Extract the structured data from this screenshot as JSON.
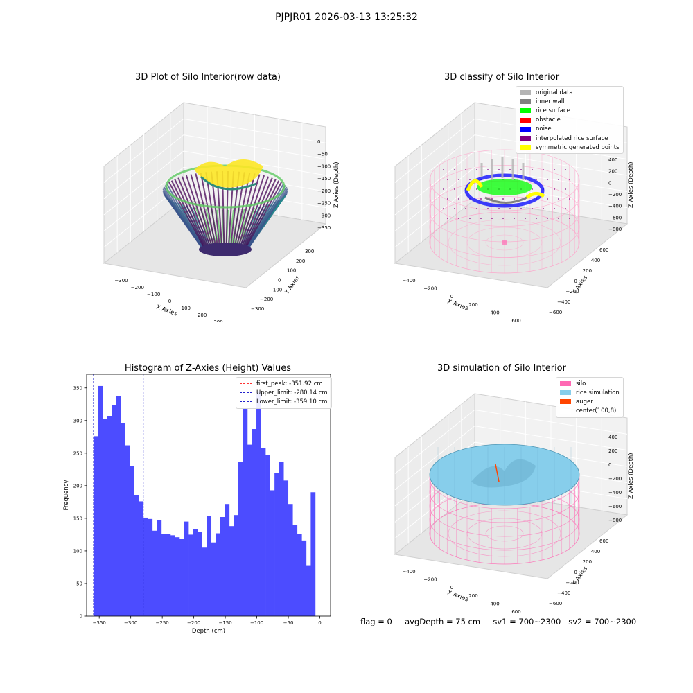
{
  "figure": {
    "suptitle": "PJPJR01 2026-03-13 13:25:32"
  },
  "status_line": {
    "text": "flag = 0     avgDepth = 75 cm     sv1 = 700~2300   sv2 = 700~2300"
  },
  "colors": {
    "histogram_bar": "#4c4cff",
    "first_peak": "#ff3333",
    "upper_limit": "#2222cc",
    "lower_limit": "#2222cc",
    "silo": "#ff69b4",
    "rice_simulation": "#87ceeb",
    "auger": "#ff4500",
    "original_data": "#b4b4b4",
    "inner_wall": "#808080",
    "rice_surface": "#00ff00",
    "obstacle": "#ff0000",
    "noise": "#0000ff",
    "interpolated_rice_surface": "#800080",
    "symmetric_generated_points": "#ffff00"
  },
  "panels": {
    "raw": {
      "title": "3D Plot of Silo Interior(row data)",
      "xlabel": "X Axies",
      "ylabel": "Y Axies",
      "zlabel": "Z Axies (Depth)",
      "xticks": [
        "−300",
        "−200",
        "−100",
        "0",
        "100",
        "200",
        "300"
      ],
      "yticks": [
        "300",
        "200",
        "100",
        "0",
        "−100",
        "−200",
        "−300"
      ],
      "zticks": [
        "0",
        "−50",
        "−100",
        "−150",
        "−200",
        "−250",
        "−300",
        "−350"
      ],
      "icon": "viridis-bowl-point-cloud"
    },
    "classify": {
      "title": "3D classify of Silo Interior",
      "xlabel": "X Axies",
      "ylabel": "Y Axies",
      "zlabel": "Z Axies (Depth)",
      "xticks": [
        "−400",
        "−200",
        "0",
        "200",
        "400",
        "600"
      ],
      "yticks": [
        "600",
        "400",
        "200",
        "0",
        "−200",
        "−400",
        "−600"
      ],
      "zticks": [
        "400",
        "200",
        "0",
        "−200",
        "−400",
        "−600",
        "−800"
      ],
      "legend": [
        {
          "label": "original data",
          "color": "#b4b4b4"
        },
        {
          "label": "inner wall",
          "color": "#808080"
        },
        {
          "label": "rice surface",
          "color": "#00ff00"
        },
        {
          "label": "obstacle",
          "color": "#ff0000"
        },
        {
          "label": "noise",
          "color": "#0000ff"
        },
        {
          "label": "interpolated rice surface",
          "color": "#800080"
        },
        {
          "label": "symmetric generated points",
          "color": "#ffff00"
        }
      ],
      "icon": "wireframe-cylinder-classified-points"
    },
    "simulation": {
      "title": "3D simulation of Silo Interior",
      "xlabel": "X Axies",
      "ylabel": "Y Axies",
      "zlabel": "Z Axies (Depth)",
      "xticks": [
        "−400",
        "−200",
        "0",
        "200",
        "400",
        "600"
      ],
      "yticks": [
        "600",
        "400",
        "200",
        "0",
        "−200",
        "−400",
        "−600"
      ],
      "zticks": [
        "400",
        "200",
        "0",
        "−200",
        "−400",
        "−600",
        "−800"
      ],
      "legend": [
        {
          "label": "silo",
          "color": "#ff69b4"
        },
        {
          "label": "rice simulation",
          "color": "#87ceeb"
        },
        {
          "label": "auger",
          "color": "#ff4500"
        },
        {
          "label": "center(100,8)",
          "color": "#ffffff"
        }
      ],
      "icon": "wireframe-cylinder-rice-surface"
    }
  },
  "chart_data": {
    "type": "bar",
    "title": "Histogram of Z-Axies (Height) Values",
    "xlabel": "Depth (cm)",
    "ylabel": "Frequency",
    "xlim": [
      -370,
      17
    ],
    "ylim": [
      0,
      371
    ],
    "xticks": [
      -350,
      -300,
      -250,
      -200,
      -150,
      -100,
      -50,
      0
    ],
    "yticks": [
      0,
      50,
      100,
      150,
      200,
      250,
      300,
      350
    ],
    "bin_start": -359.1,
    "bin_width": 7.18,
    "values": [
      276,
      353,
      302,
      307,
      324,
      337,
      296,
      262,
      230,
      185,
      176,
      151,
      149,
      131,
      147,
      126,
      126,
      124,
      121,
      118,
      145,
      125,
      133,
      129,
      105,
      154,
      113,
      127,
      152,
      172,
      138,
      155,
      237,
      319,
      263,
      287,
      345,
      258,
      247,
      193,
      219,
      236,
      208,
      172,
      140,
      126,
      116,
      77,
      190
    ],
    "reference_lines": [
      {
        "name": "first_peak: -351.92 cm",
        "x": -351.92,
        "color": "#ff3333"
      },
      {
        "name": "Upper_limit: -280.14 cm",
        "x": -280.14,
        "color": "#2222cc"
      },
      {
        "name": "Lower_limit: -359.10 cm",
        "x": -359.1,
        "color": "#2222cc"
      }
    ],
    "legend_position": "upper right",
    "grid": false
  }
}
